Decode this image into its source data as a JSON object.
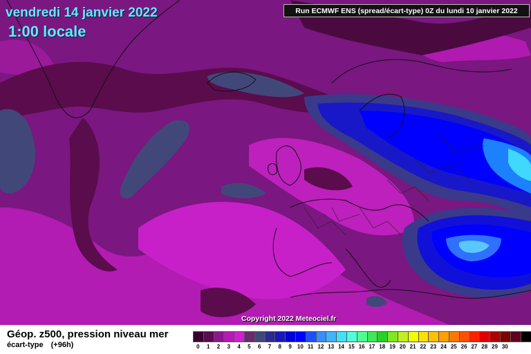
{
  "header": {
    "date": "vendredi 14 janvier 2022",
    "time": "1:00 locale",
    "run": "Run ECMWF ENS (spread/écart-type) 0Z du lundi 10 janvier 2022"
  },
  "map": {
    "region": "Europe / North Atlantic",
    "base_color": "#7a1780",
    "copyright": "Copyright 2022 Meteociel.fr"
  },
  "footer": {
    "parameter": "Géop. z500, pression niveau mer",
    "measure": "écart-type",
    "lead": "(+96h)"
  },
  "legend": {
    "colors": [
      "#3a0030",
      "#5c0c4e",
      "#8a1790",
      "#b31cb0",
      "#d01fd0",
      "#6a2a70",
      "#42477a",
      "#2a2a90",
      "#1818b8",
      "#0000d8",
      "#0000ff",
      "#1c50ff",
      "#3a8cff",
      "#40b4ff",
      "#40e0ff",
      "#50ffd8",
      "#50ff90",
      "#40e858",
      "#28d028",
      "#80e820",
      "#c0f020",
      "#f0ff00",
      "#ffe000",
      "#ffc000",
      "#ffa000",
      "#ff7800",
      "#ff5000",
      "#ff2000",
      "#e00000",
      "#b00000",
      "#800000",
      "#600020",
      "#000000"
    ],
    "values": [
      "0",
      "1",
      "2",
      "3",
      "4",
      "5",
      "6",
      "7",
      "8",
      "9",
      "10",
      "11",
      "12",
      "13",
      "14",
      "15",
      "16",
      "17",
      "18",
      "19",
      "20",
      "21",
      "22",
      "23",
      "24",
      "25",
      "26",
      "27",
      "28",
      "29",
      "30"
    ]
  }
}
